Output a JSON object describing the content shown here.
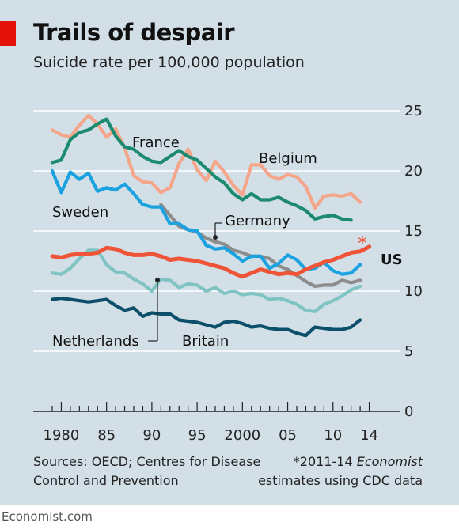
{
  "header": {
    "title": "Trails of despair",
    "subtitle": "Suicide rate per 100,000 population"
  },
  "footer": {
    "source_line1": "Sources: OECD; Centres for Disease",
    "source_line2": "Control and Prevention",
    "note_line1_prefix": "*2011-14 ",
    "note_line1_italic": "Economist",
    "note_line2": "estimates using CDC data",
    "brand": "Economist.com"
  },
  "colors": {
    "background": "#d2dfe7",
    "brand_red": "#e3120b",
    "Belgium": "#f4a58a",
    "France": "#1c8a6e",
    "Sweden": "#1aa3e0",
    "Germany": "#8c8c8c",
    "US": "#f05437",
    "Netherlands": "#7fc4c2",
    "Britain": "#0c4f6b",
    "asterisk": "#f05437"
  },
  "chart_data": {
    "type": "line",
    "x_range": [
      1979,
      2015
    ],
    "y_range": [
      0,
      25
    ],
    "y_ticks": [
      0,
      5,
      10,
      15,
      20,
      25
    ],
    "x_tick_labels": [
      {
        "x": 1980,
        "label": "1980"
      },
      {
        "x": 1985,
        "label": "85"
      },
      {
        "x": 1990,
        "label": "90"
      },
      {
        "x": 1995,
        "label": "95"
      },
      {
        "x": 2000,
        "label": "2000"
      },
      {
        "x": 2005,
        "label": "05"
      },
      {
        "x": 2010,
        "label": "10"
      },
      {
        "x": 2014,
        "label": "14"
      }
    ],
    "grid": true,
    "series": [
      {
        "name": "Belgium",
        "x": [
          1979,
          1980,
          1981,
          1982,
          1983,
          1984,
          1985,
          1986,
          1987,
          1988,
          1989,
          1990,
          1991,
          1992,
          1993,
          1994,
          1995,
          1996,
          1997,
          1998,
          1999,
          2000,
          2001,
          2002,
          2003,
          2004,
          2005,
          2006,
          2007,
          2008,
          2009,
          2010,
          2011,
          2012,
          2013
        ],
        "values": [
          23.4,
          23.0,
          22.8,
          23.8,
          24.6,
          23.9,
          22.8,
          23.5,
          21.9,
          19.6,
          19.1,
          19.0,
          18.2,
          18.6,
          20.6,
          21.8,
          20.1,
          19.2,
          20.8,
          19.9,
          18.8,
          18.0,
          20.5,
          20.5,
          19.6,
          19.3,
          19.7,
          19.5,
          18.7,
          16.9,
          17.9,
          18.0,
          17.9,
          18.1,
          17.4
        ]
      },
      {
        "name": "France",
        "x": [
          1979,
          1980,
          1981,
          1982,
          1983,
          1984,
          1985,
          1986,
          1987,
          1988,
          1989,
          1990,
          1991,
          1992,
          1993,
          1994,
          1995,
          1996,
          1997,
          1998,
          1999,
          2000,
          2001,
          2002,
          2003,
          2004,
          2005,
          2006,
          2007,
          2008,
          2009,
          2010,
          2011,
          2012
        ],
        "values": [
          20.7,
          20.9,
          22.6,
          23.2,
          23.4,
          23.9,
          24.3,
          22.9,
          22.0,
          21.8,
          21.2,
          20.8,
          20.7,
          21.2,
          21.7,
          21.2,
          20.9,
          20.2,
          19.5,
          19.0,
          18.1,
          17.6,
          18.1,
          17.6,
          17.6,
          17.8,
          17.4,
          17.1,
          16.7,
          16.0,
          16.2,
          16.3,
          16.0,
          15.9
        ]
      },
      {
        "name": "Sweden",
        "x": [
          1979,
          1980,
          1981,
          1982,
          1983,
          1984,
          1985,
          1986,
          1987,
          1988,
          1989,
          1990,
          1991,
          1992,
          1993,
          1994,
          1995,
          1996,
          1997,
          1998,
          1999,
          2000,
          2001,
          2002,
          2003,
          2004,
          2005,
          2006,
          2007,
          2008,
          2009,
          2010,
          2011,
          2012,
          2013
        ],
        "values": [
          20.0,
          18.2,
          19.9,
          19.3,
          19.8,
          18.3,
          18.6,
          18.4,
          18.9,
          18.1,
          17.2,
          17.0,
          17.0,
          15.6,
          15.6,
          15.1,
          15.0,
          13.8,
          13.5,
          13.6,
          13.1,
          12.5,
          12.9,
          12.9,
          11.9,
          12.3,
          13.0,
          12.6,
          11.8,
          11.9,
          12.4,
          11.7,
          11.4,
          11.5,
          12.2
        ]
      },
      {
        "name": "Germany",
        "x": [
          1991,
          1992,
          1993,
          1994,
          1995,
          1996,
          1997,
          1998,
          1999,
          2000,
          2001,
          2002,
          2003,
          2004,
          2005,
          2006,
          2007,
          2008,
          2009,
          2010,
          2011,
          2012,
          2013
        ],
        "values": [
          17.2,
          16.3,
          15.4,
          15.1,
          14.9,
          14.4,
          14.1,
          13.9,
          13.4,
          13.2,
          12.9,
          12.9,
          12.7,
          12.1,
          11.8,
          11.3,
          10.8,
          10.4,
          10.5,
          10.5,
          10.9,
          10.7,
          10.9
        ]
      },
      {
        "name": "US",
        "x": [
          1979,
          1980,
          1981,
          1982,
          1983,
          1984,
          1985,
          1986,
          1987,
          1988,
          1989,
          1990,
          1991,
          1992,
          1993,
          1994,
          1995,
          1996,
          1997,
          1998,
          1999,
          2000,
          2001,
          2002,
          2003,
          2004,
          2005,
          2006,
          2007,
          2008,
          2009,
          2010,
          2011,
          2012,
          2013,
          2014
        ],
        "values": [
          12.9,
          12.8,
          13.0,
          13.1,
          13.1,
          13.2,
          13.6,
          13.5,
          13.2,
          13.0,
          13.0,
          13.1,
          12.9,
          12.6,
          12.7,
          12.6,
          12.5,
          12.3,
          12.1,
          11.9,
          11.5,
          11.2,
          11.5,
          11.8,
          11.6,
          11.4,
          11.5,
          11.4,
          11.8,
          12.1,
          12.4,
          12.6,
          12.9,
          13.2,
          13.3,
          13.7
        ]
      },
      {
        "name": "Netherlands",
        "x": [
          1979,
          1980,
          1981,
          1982,
          1983,
          1984,
          1985,
          1986,
          1987,
          1988,
          1989,
          1990,
          1991,
          1992,
          1993,
          1994,
          1995,
          1996,
          1997,
          1998,
          1999,
          2000,
          2001,
          2002,
          2003,
          2004,
          2005,
          2006,
          2007,
          2008,
          2009,
          2010,
          2011,
          2012,
          2013
        ],
        "values": [
          11.5,
          11.4,
          11.9,
          12.7,
          13.4,
          13.4,
          12.2,
          11.6,
          11.5,
          11.0,
          10.6,
          10.0,
          11.0,
          10.9,
          10.3,
          10.6,
          10.5,
          10.0,
          10.3,
          9.8,
          10.0,
          9.7,
          9.8,
          9.7,
          9.3,
          9.4,
          9.2,
          8.9,
          8.4,
          8.3,
          8.9,
          9.2,
          9.6,
          10.1,
          10.4
        ]
      },
      {
        "name": "Britain",
        "x": [
          1979,
          1980,
          1981,
          1982,
          1983,
          1984,
          1985,
          1986,
          1987,
          1988,
          1989,
          1990,
          1991,
          1992,
          1993,
          1994,
          1995,
          1996,
          1997,
          1998,
          1999,
          2000,
          2001,
          2002,
          2003,
          2004,
          2005,
          2006,
          2007,
          2008,
          2009,
          2010,
          2011,
          2012,
          2013
        ],
        "values": [
          9.3,
          9.4,
          9.3,
          9.2,
          9.1,
          9.2,
          9.3,
          8.8,
          8.4,
          8.6,
          7.9,
          8.2,
          8.1,
          8.1,
          7.6,
          7.5,
          7.4,
          7.2,
          7.0,
          7.4,
          7.5,
          7.3,
          7.0,
          7.1,
          6.9,
          6.8,
          6.8,
          6.5,
          6.3,
          7.0,
          6.9,
          6.8,
          6.8,
          7.0,
          7.6
        ]
      }
    ],
    "annotations": [
      {
        "text": "France",
        "series": "France"
      },
      {
        "text": "Belgium",
        "series": "Belgium"
      },
      {
        "text": "Sweden",
        "series": "Sweden"
      },
      {
        "text": "Germany",
        "series": "Germany"
      },
      {
        "text": "US",
        "series": "US",
        "bold": true
      },
      {
        "text": "*",
        "series": "US"
      },
      {
        "text": "Netherlands",
        "series": "Netherlands"
      },
      {
        "text": "Britain",
        "series": "Britain"
      }
    ]
  }
}
